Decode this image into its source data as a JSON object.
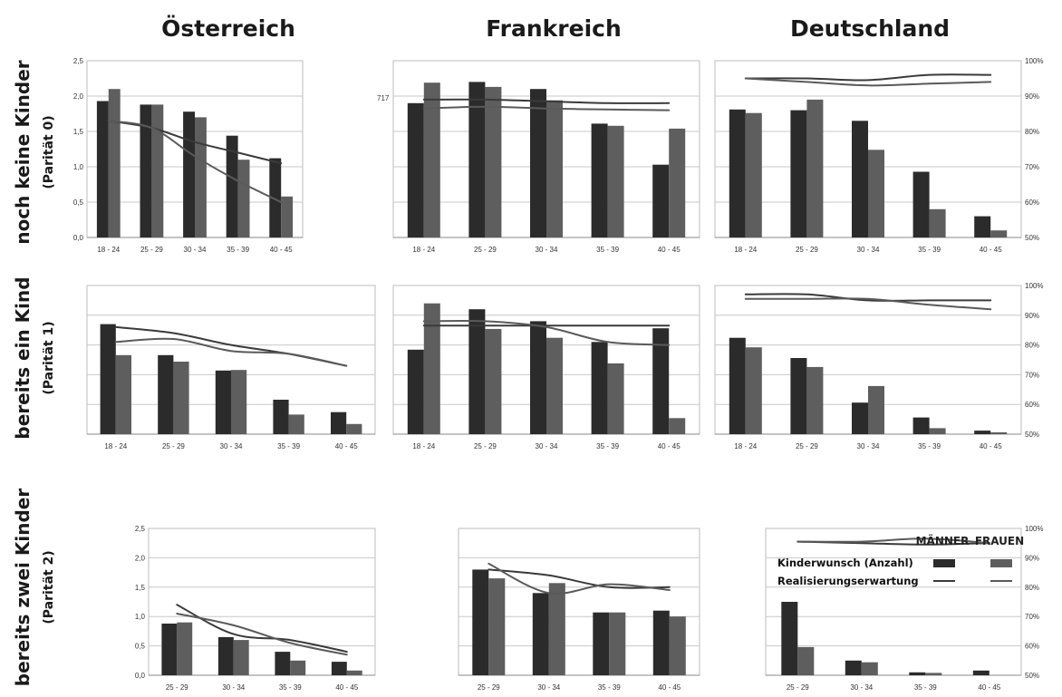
{
  "column_titles": [
    "Österreich",
    "Frankreich",
    "Deutschland"
  ],
  "row_titles": [
    {
      "title": "noch keine Kinder",
      "subtitle": "(Parität 0)"
    },
    {
      "title": "bereits ein Kind",
      "subtitle": "(Parität 1)"
    },
    {
      "title": "bereits zwei Kinder",
      "subtitle": "(Parität 2)"
    }
  ],
  "stray_label": "717",
  "legend": {
    "col_men": "MÄNNER",
    "col_women": "FRAUEN",
    "bars_label": "Kinderwunsch (Anzahl)",
    "lines_label": "Realisierungserwartung"
  },
  "colors": {
    "men_bar": "#2b2b2b",
    "women_bar": "#5e5e5e",
    "men_line": "#3a3a3a",
    "women_line": "#5a5a5a"
  },
  "chart_data": [
    {
      "id": "at-0",
      "type": "bar",
      "categories": [
        "18 - 24",
        "25 - 29",
        "30 - 34",
        "35 - 39",
        "40 - 45"
      ],
      "ylim": [
        0,
        2.5
      ],
      "yticks": [
        "0,0",
        "0,5",
        "1,0",
        "1,5",
        "2,0",
        "2,5"
      ],
      "y2ticks": [],
      "series": [
        {
          "name": "MÄNNER",
          "values": [
            1.93,
            1.88,
            1.78,
            1.44,
            1.12
          ]
        },
        {
          "name": "FRAUEN",
          "values": [
            2.1,
            1.88,
            1.7,
            1.1,
            0.58
          ]
        }
      ],
      "lines": [
        {
          "name": "MÄNNER",
          "values": [
            83,
            81,
            77,
            74,
            71
          ]
        },
        {
          "name": "FRAUEN",
          "values": [
            83,
            81,
            73,
            66,
            60
          ]
        }
      ],
      "line_ylim": [
        50,
        100
      ]
    },
    {
      "id": "fr-0",
      "type": "bar",
      "categories": [
        "18 - 24",
        "25 - 29",
        "30 - 34",
        "35 - 39",
        "40 - 45"
      ],
      "ylim": [
        0,
        2.5
      ],
      "yticks": [],
      "y2ticks": [],
      "series": [
        {
          "name": "MÄNNER",
          "values": [
            1.9,
            2.2,
            2.1,
            1.61,
            1.03
          ]
        },
        {
          "name": "FRAUEN",
          "values": [
            2.19,
            2.13,
            1.94,
            1.58,
            1.54
          ]
        }
      ],
      "lines": [
        {
          "name": "MÄNNER",
          "values": [
            89,
            89,
            88.5,
            88,
            88
          ]
        },
        {
          "name": "FRAUEN",
          "values": [
            86.5,
            87,
            86.5,
            86.2,
            86
          ]
        }
      ],
      "line_ylim": [
        50,
        100
      ]
    },
    {
      "id": "de-0",
      "type": "bar",
      "categories": [
        "18 - 24",
        "25 - 29",
        "30 - 34",
        "35 - 39",
        "40 - 45"
      ],
      "ylim": [
        0,
        2.5
      ],
      "yticks": [],
      "y2ticks": [
        "50%",
        "60%",
        "70%",
        "80%",
        "90%",
        "100%"
      ],
      "series": [
        {
          "name": "MÄNNER",
          "values": [
            1.81,
            1.8,
            1.65,
            0.93,
            0.3
          ]
        },
        {
          "name": "FRAUEN",
          "values": [
            1.76,
            1.95,
            1.24,
            0.4,
            0.1
          ]
        }
      ],
      "lines": [
        {
          "name": "MÄNNER",
          "values": [
            95,
            95,
            94.5,
            96,
            96
          ]
        },
        {
          "name": "FRAUEN",
          "values": [
            95,
            94,
            93,
            93.5,
            94
          ]
        }
      ],
      "line_ylim": [
        50,
        100
      ]
    },
    {
      "id": "at-1",
      "type": "bar",
      "categories": [
        "18 - 24",
        "25 - 29",
        "30 - 34",
        "35 - 39",
        "40 - 45"
      ],
      "ylim": [
        0,
        2.5
      ],
      "yticks": [],
      "y2ticks": [],
      "series": [
        {
          "name": "MÄNNER",
          "values": [
            1.85,
            1.33,
            1.07,
            0.58,
            0.37
          ]
        },
        {
          "name": "FRAUEN",
          "values": [
            1.33,
            1.22,
            1.08,
            0.33,
            0.17
          ]
        }
      ],
      "lines": [
        {
          "name": "MÄNNER",
          "values": [
            86,
            84,
            80,
            77,
            73
          ]
        },
        {
          "name": "FRAUEN",
          "values": [
            81,
            82,
            78,
            77,
            73
          ]
        }
      ],
      "line_ylim": [
        50,
        100
      ]
    },
    {
      "id": "fr-1",
      "type": "bar",
      "categories": [
        "18 - 24",
        "25 - 29",
        "30 - 34",
        "35 - 39",
        "40 - 45"
      ],
      "ylim": [
        0,
        2.5
      ],
      "yticks": [],
      "y2ticks": [],
      "series": [
        {
          "name": "MÄNNER",
          "values": [
            1.42,
            2.1,
            1.9,
            1.55,
            1.78
          ]
        },
        {
          "name": "FRAUEN",
          "values": [
            2.2,
            1.77,
            1.62,
            1.19,
            0.27
          ]
        }
      ],
      "lines": [
        {
          "name": "MÄNNER",
          "values": [
            86.5,
            86.5,
            86.5,
            86.5,
            86.5
          ]
        },
        {
          "name": "FRAUEN",
          "values": [
            88,
            88,
            86,
            81,
            80
          ]
        }
      ],
      "line_ylim": [
        50,
        100
      ]
    },
    {
      "id": "de-1",
      "type": "bar",
      "categories": [
        "18 - 24",
        "25 - 29",
        "30 - 34",
        "35 - 39",
        "40 - 45"
      ],
      "ylim": [
        0,
        2.5
      ],
      "yticks": [],
      "y2ticks": [
        "50%",
        "60%",
        "70%",
        "80%",
        "90%",
        "100%"
      ],
      "series": [
        {
          "name": "MÄNNER",
          "values": [
            1.62,
            1.28,
            0.53,
            0.28,
            0.06
          ]
        },
        {
          "name": "FRAUEN",
          "values": [
            1.46,
            1.13,
            0.81,
            0.1,
            0.03
          ]
        }
      ],
      "lines": [
        {
          "name": "MÄNNER",
          "values": [
            97,
            97,
            95,
            95,
            95
          ]
        },
        {
          "name": "FRAUEN",
          "values": [
            95.5,
            95.5,
            95.5,
            93.5,
            92
          ]
        }
      ],
      "line_ylim": [
        50,
        100
      ]
    },
    {
      "id": "at-2",
      "type": "bar",
      "categories": [
        "25 - 29",
        "30 - 34",
        "35 - 39",
        "40 - 45"
      ],
      "ylim": [
        0,
        2.5
      ],
      "yticks": [
        "0,0",
        "0,5",
        "1,0",
        "1,5",
        "2,0",
        "2,5"
      ],
      "y2ticks": [],
      "series": [
        {
          "name": "MÄNNER",
          "values": [
            0.88,
            0.65,
            0.4,
            0.23
          ]
        },
        {
          "name": "FRAUEN",
          "values": [
            0.9,
            0.6,
            0.25,
            0.08
          ]
        }
      ],
      "lines": [
        {
          "name": "MÄNNER",
          "values": [
            74,
            64,
            62,
            58
          ]
        },
        {
          "name": "FRAUEN",
          "values": [
            71,
            67,
            61,
            57
          ]
        }
      ],
      "line_ylim": [
        50,
        100
      ]
    },
    {
      "id": "fr-2",
      "type": "bar",
      "categories": [
        "25 - 29",
        "30 - 34",
        "35 - 39",
        "40 - 45"
      ],
      "ylim": [
        0,
        2.5
      ],
      "yticks": [],
      "y2ticks": [],
      "series": [
        {
          "name": "MÄNNER",
          "values": [
            1.8,
            1.4,
            1.07,
            1.1
          ]
        },
        {
          "name": "FRAUEN",
          "values": [
            1.65,
            1.57,
            1.07,
            1.0
          ]
        }
      ],
      "lines": [
        {
          "name": "MÄNNER",
          "values": [
            86,
            84,
            80,
            80
          ]
        },
        {
          "name": "FRAUEN",
          "values": [
            88,
            78,
            81,
            79
          ]
        }
      ],
      "line_ylim": [
        50,
        100
      ]
    },
    {
      "id": "de-2",
      "type": "bar",
      "categories": [
        "25 - 29",
        "30 - 34",
        "35 - 39",
        "40 - 45"
      ],
      "ylim": [
        0,
        2.5
      ],
      "yticks": [],
      "y2ticks": [
        "50%",
        "60%",
        "70%",
        "80%",
        "90%",
        "100%"
      ],
      "series": [
        {
          "name": "MÄNNER",
          "values": [
            1.25,
            0.25,
            0.05,
            0.08
          ]
        },
        {
          "name": "FRAUEN",
          "values": [
            0.48,
            0.22,
            0.04,
            0.0
          ]
        }
      ],
      "lines": [
        {
          "name": "MÄNNER",
          "values": [
            95.5,
            95,
            94.5,
            95
          ]
        },
        {
          "name": "FRAUEN",
          "values": [
            95.5,
            95.5,
            96.5,
            95
          ]
        }
      ],
      "line_ylim": [
        50,
        100
      ]
    }
  ]
}
